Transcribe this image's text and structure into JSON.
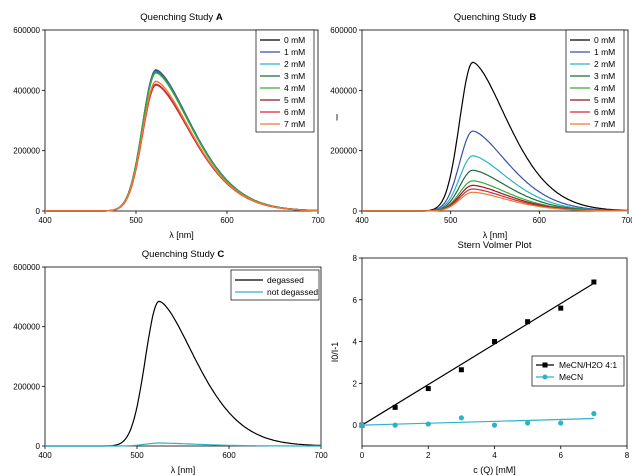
{
  "chart_data": [
    {
      "type": "line",
      "title": "Quenching Study ",
      "title_bold": "A",
      "xlabel": "λ [nm]",
      "ylabel": "",
      "xlim": [
        400,
        700
      ],
      "ylim": [
        0,
        600000
      ],
      "xticks": [
        400,
        500,
        600,
        700
      ],
      "yticks": [
        0,
        200000,
        400000,
        600000
      ],
      "legend_position": "top-right",
      "peak_x": 522,
      "series": [
        {
          "name": "0 mM",
          "color": "#000000",
          "peak": 465000
        },
        {
          "name": "1 mM",
          "color": "#3a4fa8",
          "peak": 468000
        },
        {
          "name": "2 mM",
          "color": "#2bb3c9",
          "peak": 462000
        },
        {
          "name": "3 mM",
          "color": "#1a6b3a",
          "peak": 460000
        },
        {
          "name": "4 mM",
          "color": "#3aaa35",
          "peak": 458000
        },
        {
          "name": "5 mM",
          "color": "#8b1a2a",
          "peak": 420000
        },
        {
          "name": "6 mM",
          "color": "#d62a3a",
          "peak": 418000
        },
        {
          "name": "7 mM",
          "color": "#f07a30",
          "peak": 430000
        }
      ]
    },
    {
      "type": "line",
      "title": "Quenching Study ",
      "title_bold": "B",
      "xlabel": "λ [nm]",
      "ylabel": "I",
      "xlim": [
        400,
        700
      ],
      "ylim": [
        0,
        600000
      ],
      "xticks": [
        400,
        500,
        600,
        700
      ],
      "yticks": [
        0,
        200000,
        400000,
        600000
      ],
      "legend_position": "top-right",
      "peak_x": 525,
      "series": [
        {
          "name": "0 mM",
          "color": "#000000",
          "peak": 493000
        },
        {
          "name": "1 mM",
          "color": "#3a4fa8",
          "peak": 265000
        },
        {
          "name": "2 mM",
          "color": "#2bb3c9",
          "peak": 183000
        },
        {
          "name": "3 mM",
          "color": "#1a6b3a",
          "peak": 135000
        },
        {
          "name": "4 mM",
          "color": "#3aaa35",
          "peak": 100000
        },
        {
          "name": "5 mM",
          "color": "#8b1a2a",
          "peak": 85000
        },
        {
          "name": "6 mM",
          "color": "#d62a3a",
          "peak": 73000
        },
        {
          "name": "7 mM",
          "color": "#f07a30",
          "peak": 62000
        }
      ]
    },
    {
      "type": "line",
      "title": "Quenching Study ",
      "title_bold": "C",
      "xlabel": "λ [nm]",
      "ylabel": "",
      "xlim": [
        400,
        700
      ],
      "ylim": [
        0,
        600000
      ],
      "xticks": [
        400,
        500,
        600,
        700
      ],
      "yticks": [
        0,
        200000,
        400000,
        600000
      ],
      "legend_position": "top-right",
      "peak_x": 524,
      "series": [
        {
          "name": "degassed",
          "color": "#000000",
          "peak": 485000
        },
        {
          "name": "not degassed",
          "color": "#2bb3c9",
          "peak": 10000
        }
      ]
    },
    {
      "type": "scatter",
      "title": "Stern Volmer Plot",
      "xlabel": "c (Q) [mM]",
      "ylabel": "I0/I-1",
      "xlim": [
        0,
        8
      ],
      "ylim": [
        -1,
        8
      ],
      "xticks": [
        0,
        2,
        4,
        6,
        8
      ],
      "yticks": [
        0,
        2,
        4,
        6,
        8
      ],
      "legend_position": "right",
      "series": [
        {
          "name": "MeCN/H2O 4:1",
          "color": "#000000",
          "marker": "square",
          "x": [
            0,
            1,
            2,
            3,
            4,
            5,
            6,
            7
          ],
          "y": [
            0.0,
            0.85,
            1.75,
            2.65,
            4.0,
            4.95,
            5.6,
            6.85
          ],
          "fit": [
            0.0,
            0.97
          ]
        },
        {
          "name": "MeCN",
          "color": "#2bb3c9",
          "marker": "circle",
          "x": [
            0,
            1,
            2,
            3,
            4,
            5,
            6,
            7
          ],
          "y": [
            0.0,
            0.0,
            0.05,
            0.35,
            0.0,
            0.1,
            0.1,
            0.55
          ],
          "fit": [
            0.0,
            0.045
          ]
        }
      ]
    }
  ]
}
